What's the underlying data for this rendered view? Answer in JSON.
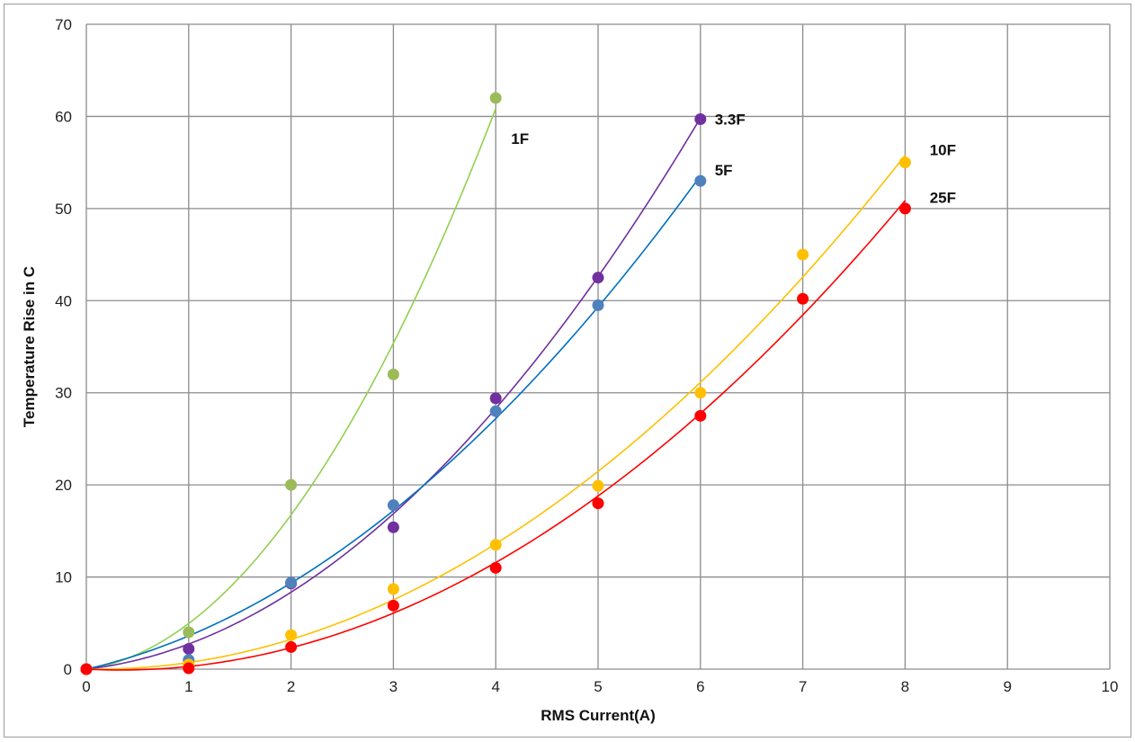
{
  "chart_data": {
    "type": "scatter",
    "title": "",
    "xlabel": "RMS Current(A)",
    "ylabel": "Temperature Rise in C",
    "xlim": [
      0,
      10
    ],
    "ylim": [
      0,
      70
    ],
    "xticks": [
      0,
      1,
      2,
      3,
      4,
      5,
      6,
      7,
      8,
      9,
      10
    ],
    "yticks": [
      0,
      10,
      20,
      30,
      40,
      50,
      60,
      70
    ],
    "grid": true,
    "legend": "none (series labeled inline at end points)",
    "trendline": "polynomial fit through origin",
    "series": [
      {
        "name": "1F",
        "color": "#92D050",
        "marker_color": "#9BBB59",
        "x": [
          0,
          1,
          2,
          3,
          4
        ],
        "y": [
          0,
          4,
          20,
          32,
          62
        ]
      },
      {
        "name": "3.3F",
        "color": "#7030A0",
        "marker_color": "#7030A0",
        "x": [
          0,
          1,
          2,
          3,
          4,
          5,
          6
        ],
        "y": [
          0,
          2.2,
          9.3,
          15.4,
          29.4,
          42.5,
          59.7
        ]
      },
      {
        "name": "5F",
        "color": "#0070C0",
        "marker_color": "#4F81BD",
        "x": [
          0,
          1,
          2,
          3,
          4,
          5,
          6
        ],
        "y": [
          0,
          1,
          9.4,
          17.8,
          28,
          39.5,
          53
        ]
      },
      {
        "name": "10F",
        "color": "#FFC000",
        "marker_color": "#FFC000",
        "x": [
          0,
          1,
          2,
          3,
          4,
          5,
          6,
          7,
          8
        ],
        "y": [
          0,
          0.5,
          3.7,
          8.7,
          13.5,
          19.9,
          30,
          45,
          55
        ]
      },
      {
        "name": "25F",
        "color": "#FF0000",
        "marker_color": "#FF0000",
        "x": [
          0,
          1,
          2,
          3,
          4,
          5,
          6,
          7,
          8
        ],
        "y": [
          0,
          0.1,
          2.4,
          6.9,
          11,
          18,
          27.5,
          40.2,
          50
        ]
      }
    ]
  }
}
